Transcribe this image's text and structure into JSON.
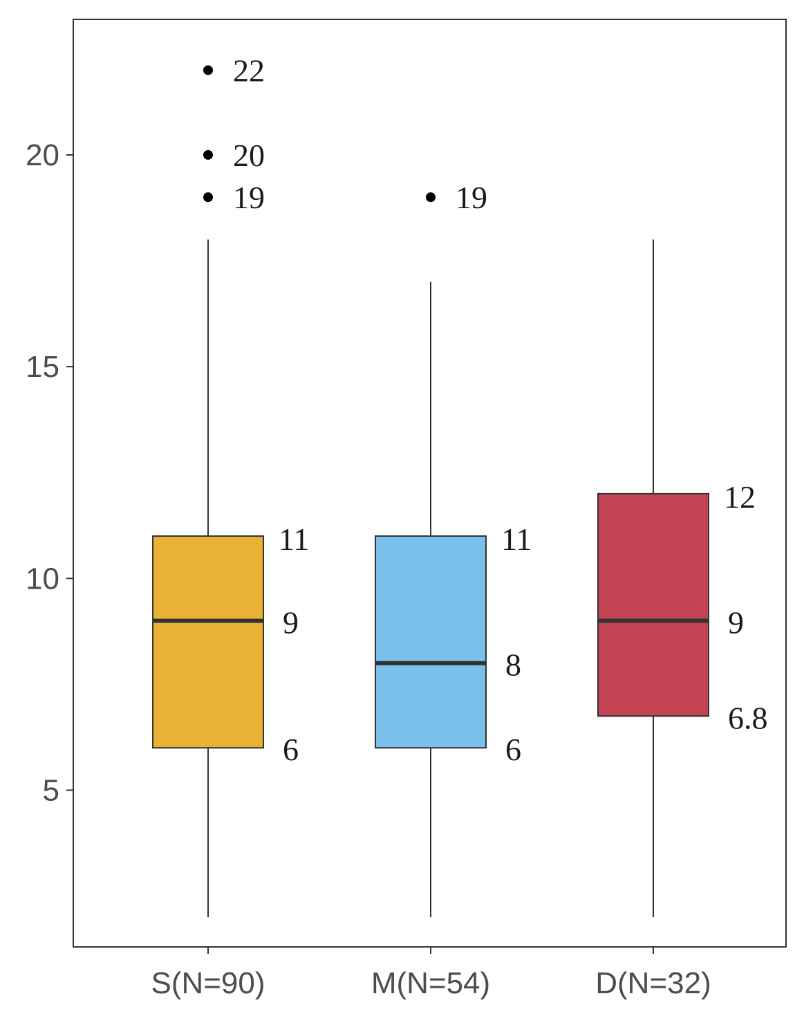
{
  "chart_data": {
    "type": "box",
    "title": "",
    "xlabel": "",
    "ylabel": "",
    "ylim": [
      1.3,
      23.2
    ],
    "yticks": [
      5,
      10,
      15,
      20
    ],
    "categories": [
      "S(N=90)",
      "M(N=54)",
      "D(N=32)"
    ],
    "grid": false,
    "boxes": [
      {
        "category": "S(N=90)",
        "whisker_low": 2,
        "q1": 6,
        "median": 9,
        "q3": 11,
        "whisker_high": 18,
        "outliers": [
          19,
          20,
          22
        ],
        "color": "#E9B234",
        "labels": {
          "q3": "11",
          "median": "9",
          "q1": "6"
        },
        "outlier_labels": [
          "19",
          "20",
          "22"
        ]
      },
      {
        "category": "M(N=54)",
        "whisker_low": 2,
        "q1": 6,
        "median": 8,
        "q3": 11,
        "whisker_high": 17,
        "outliers": [
          19
        ],
        "color": "#79C1EA",
        "labels": {
          "q3": "11",
          "median": "8",
          "q1": "6"
        },
        "outlier_labels": [
          "19"
        ]
      },
      {
        "category": "D(N=32)",
        "whisker_low": 2,
        "q1": 6.75,
        "median": 9,
        "q3": 12,
        "whisker_high": 18,
        "outliers": [],
        "color": "#C24453",
        "labels": {
          "q3": "12",
          "median": "9",
          "q1": "6.8"
        },
        "outlier_labels": []
      }
    ]
  }
}
